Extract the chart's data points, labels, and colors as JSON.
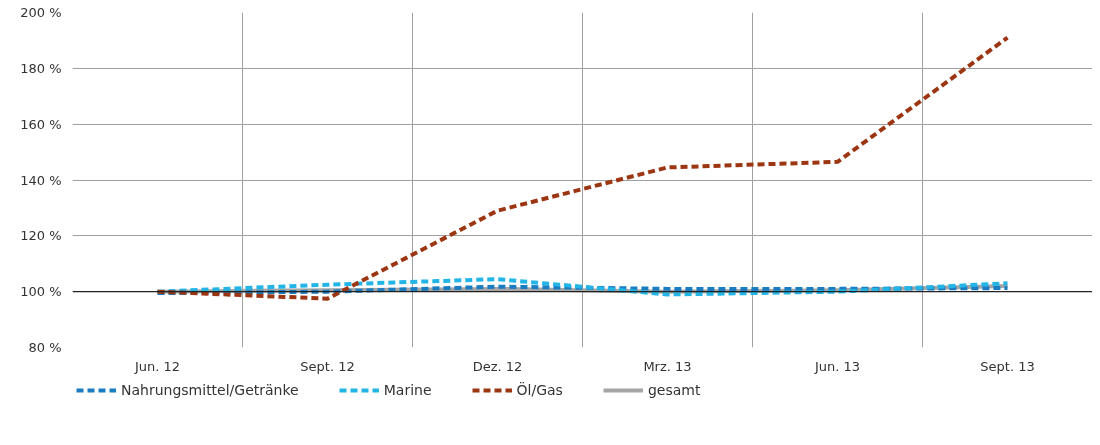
{
  "chart_data": {
    "type": "line",
    "categories": [
      "Jun. 12",
      "Sept. 12",
      "Dez. 12",
      "Mrz. 13",
      "Jun. 13",
      "Sept. 13"
    ],
    "series": [
      {
        "name": "Nahrungsmittel/Getränke",
        "color": "#1a7cc1",
        "line_style": "dashed",
        "values": [
          99.5,
          100,
          101.8,
          101,
          101,
          101.3
        ]
      },
      {
        "name": "Marine",
        "color": "#22b5e6",
        "line_style": "dashed",
        "values": [
          100,
          102.5,
          104.5,
          99,
          100,
          103
        ]
      },
      {
        "name": "Öl/Gas",
        "color": "#9c3511",
        "line_style": "dashed",
        "values": [
          100,
          97.5,
          129,
          144.5,
          146.5,
          191
        ]
      },
      {
        "name": "gesamt",
        "color": "#a6a6a6",
        "line_style": "solid",
        "values": [
          100,
          100.5,
          101,
          100,
          100.5,
          102
        ]
      }
    ],
    "ylim": [
      80,
      200
    ],
    "yticks": [
      {
        "value": 80,
        "label": "80 %"
      },
      {
        "value": 100,
        "label": "100 %"
      },
      {
        "value": 120,
        "label": "120 %"
      },
      {
        "value": 140,
        "label": "140 %"
      },
      {
        "value": 160,
        "label": "160 %"
      },
      {
        "value": 180,
        "label": "180 %"
      },
      {
        "value": 200,
        "label": "200 %"
      }
    ],
    "ref_lines": [
      {
        "axis": "y",
        "value": 100,
        "label": null,
        "color": "#222222"
      }
    ],
    "grid": true,
    "legend": "bottom",
    "marker": "none"
  }
}
